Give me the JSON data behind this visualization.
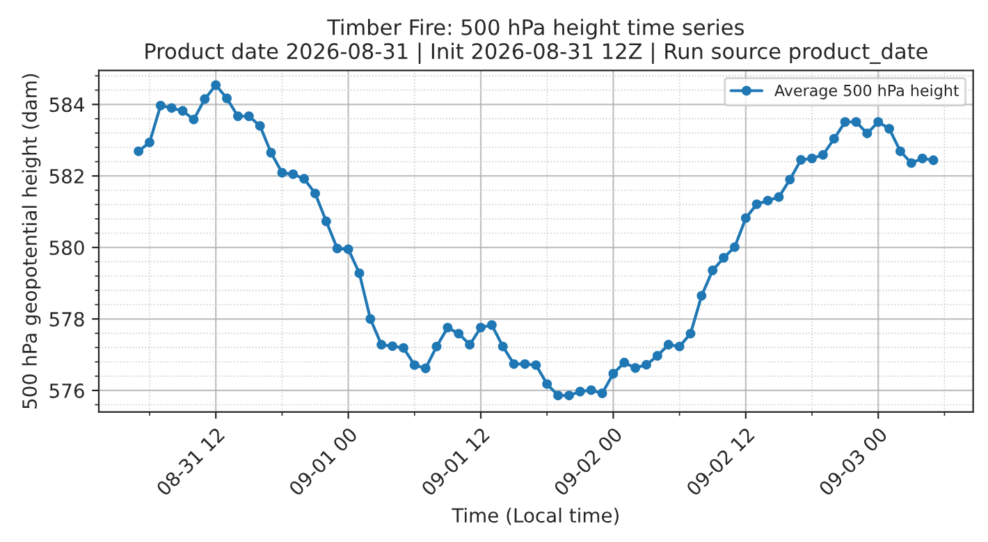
{
  "chart_data": {
    "type": "line",
    "title": "Timber Fire: 500 hPa height time series\nProduct date 2026-08-31 | Init 2026-08-31 12Z | Run source product_date",
    "xlabel": "Time (Local time)",
    "ylabel": "500 hPa geopotential height (dam)",
    "x": [
      "2026-08-31T05:00",
      "2026-08-31T06:00",
      "2026-08-31T07:00",
      "2026-08-31T08:00",
      "2026-08-31T09:00",
      "2026-08-31T10:00",
      "2026-08-31T11:00",
      "2026-08-31T12:00",
      "2026-08-31T13:00",
      "2026-08-31T14:00",
      "2026-08-31T15:00",
      "2026-08-31T16:00",
      "2026-08-31T17:00",
      "2026-08-31T18:00",
      "2026-08-31T19:00",
      "2026-08-31T20:00",
      "2026-08-31T21:00",
      "2026-08-31T22:00",
      "2026-08-31T23:00",
      "2026-09-01T00:00",
      "2026-09-01T01:00",
      "2026-09-01T02:00",
      "2026-09-01T03:00",
      "2026-09-01T04:00",
      "2026-09-01T05:00",
      "2026-09-01T06:00",
      "2026-09-01T07:00",
      "2026-09-01T08:00",
      "2026-09-01T09:00",
      "2026-09-01T10:00",
      "2026-09-01T11:00",
      "2026-09-01T12:00",
      "2026-09-01T13:00",
      "2026-09-01T14:00",
      "2026-09-01T15:00",
      "2026-09-01T16:00",
      "2026-09-01T17:00",
      "2026-09-01T18:00",
      "2026-09-01T19:00",
      "2026-09-01T20:00",
      "2026-09-01T21:00",
      "2026-09-01T22:00",
      "2026-09-01T23:00",
      "2026-09-02T00:00",
      "2026-09-02T01:00",
      "2026-09-02T02:00",
      "2026-09-02T03:00",
      "2026-09-02T04:00",
      "2026-09-02T05:00",
      "2026-09-02T06:00",
      "2026-09-02T07:00",
      "2026-09-02T08:00",
      "2026-09-02T09:00",
      "2026-09-02T10:00",
      "2026-09-02T11:00",
      "2026-09-02T12:00",
      "2026-09-02T13:00",
      "2026-09-02T14:00",
      "2026-09-02T15:00",
      "2026-09-02T16:00",
      "2026-09-02T17:00",
      "2026-09-02T18:00",
      "2026-09-02T19:00",
      "2026-09-02T20:00",
      "2026-09-02T21:00",
      "2026-09-02T22:00",
      "2026-09-02T23:00",
      "2026-09-03T00:00",
      "2026-09-03T01:00",
      "2026-09-03T02:00",
      "2026-09-03T03:00",
      "2026-09-03T04:00",
      "2026-09-03T05:00"
    ],
    "series": [
      {
        "name": "Average 500 hPa height",
        "color": "#1f77b4",
        "values": [
          582.69,
          582.94,
          583.97,
          583.9,
          583.82,
          583.58,
          584.15,
          584.54,
          584.17,
          583.67,
          583.67,
          583.4,
          582.65,
          582.09,
          582.05,
          581.92,
          581.51,
          580.73,
          579.97,
          579.95,
          579.28,
          578.0,
          577.28,
          577.24,
          577.19,
          576.71,
          576.62,
          577.23,
          577.76,
          577.59,
          577.28,
          577.76,
          577.83,
          577.23,
          576.74,
          576.74,
          576.71,
          576.18,
          575.86,
          575.86,
          575.97,
          576.01,
          575.92,
          576.47,
          576.78,
          576.63,
          576.72,
          576.97,
          577.28,
          577.23,
          577.59,
          578.65,
          579.36,
          579.71,
          580.01,
          580.82,
          581.21,
          581.31,
          581.41,
          581.9,
          582.45,
          582.49,
          582.59,
          583.04,
          583.51,
          583.51,
          583.19,
          583.51,
          583.32,
          582.69,
          582.36,
          582.49,
          582.44
        ]
      }
    ],
    "xlim": [
      "2026-08-31T01:24",
      "2026-09-03T08:36"
    ],
    "xticks": [
      {
        "value": "2026-08-31T12:00",
        "label": "08-31 12"
      },
      {
        "value": "2026-09-01T00:00",
        "label": "09-01 00"
      },
      {
        "value": "2026-09-01T12:00",
        "label": "09-01 12"
      },
      {
        "value": "2026-09-02T00:00",
        "label": "09-02 00"
      },
      {
        "value": "2026-09-02T12:00",
        "label": "09-02 12"
      },
      {
        "value": "2026-09-03T00:00",
        "label": "09-03 00"
      }
    ],
    "ylim": [
      575.4,
      584.95
    ],
    "yticks": [
      576,
      578,
      580,
      582,
      584
    ],
    "grid": true,
    "legend": "top right",
    "marker": "circle",
    "line_style": "solid"
  }
}
